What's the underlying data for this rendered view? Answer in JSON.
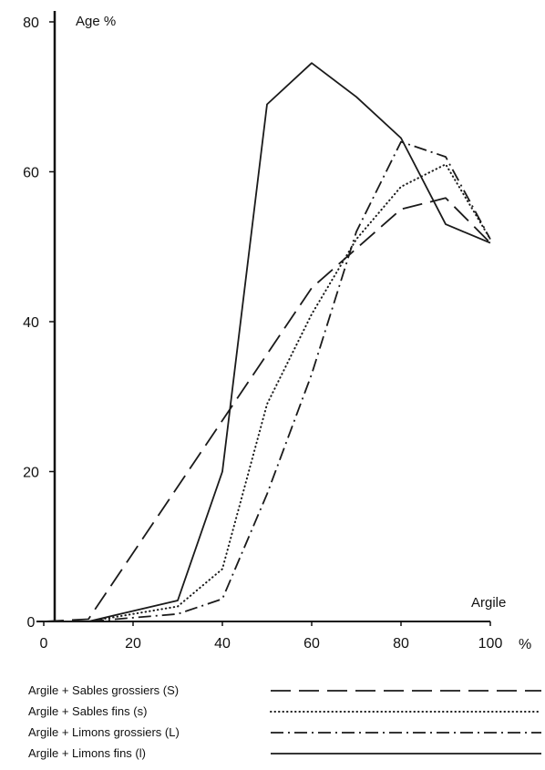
{
  "chart_data": {
    "type": "line",
    "title": "",
    "xlabel": "Argile",
    "ylabel": "Age %",
    "x_unit": "%",
    "xlim": [
      0,
      100
    ],
    "ylim": [
      0,
      80
    ],
    "x_ticks": [
      0,
      20,
      40,
      60,
      80,
      100
    ],
    "y_ticks": [
      0,
      20,
      40,
      60,
      80
    ],
    "grid": false,
    "legend_position": "bottom",
    "series": [
      {
        "name": "Argile + Sables grossiers (S)",
        "style": "long-dash",
        "color": "#1a1a1a",
        "points": [
          [
            0,
            0
          ],
          [
            10,
            0.3
          ],
          [
            60,
            44.5
          ],
          [
            80,
            55
          ],
          [
            90,
            56.5
          ],
          [
            100,
            50.5
          ]
        ]
      },
      {
        "name": "Argile + Sables fins (s)",
        "style": "dotted",
        "color": "#1a1a1a",
        "points": [
          [
            0,
            0
          ],
          [
            10,
            0
          ],
          [
            30,
            2
          ],
          [
            40,
            7
          ],
          [
            50,
            29
          ],
          [
            60,
            41
          ],
          [
            70,
            51
          ],
          [
            80,
            58
          ],
          [
            90,
            61
          ],
          [
            100,
            51
          ]
        ]
      },
      {
        "name": "Argile + Limons grossiers (L)",
        "style": "dash-dot",
        "color": "#1a1a1a",
        "points": [
          [
            0,
            0
          ],
          [
            10,
            0
          ],
          [
            30,
            1
          ],
          [
            40,
            3
          ],
          [
            50,
            17
          ],
          [
            60,
            33
          ],
          [
            70,
            52
          ],
          [
            80,
            64
          ],
          [
            90,
            62
          ],
          [
            100,
            51
          ]
        ]
      },
      {
        "name": "Argile + Limons fins (l)",
        "style": "solid",
        "color": "#1a1a1a",
        "points": [
          [
            0,
            0
          ],
          [
            10,
            0
          ],
          [
            30,
            2.8
          ],
          [
            40,
            20
          ],
          [
            50,
            69
          ],
          [
            60,
            74.5
          ],
          [
            70,
            70
          ],
          [
            80,
            64.5
          ],
          [
            90,
            53
          ],
          [
            100,
            50.5
          ]
        ]
      }
    ]
  }
}
